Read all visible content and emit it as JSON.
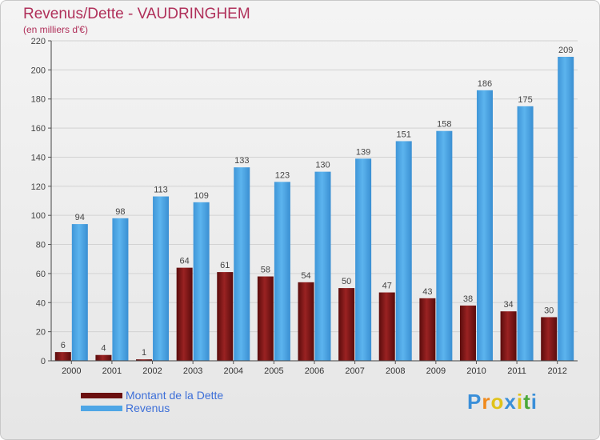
{
  "header": {
    "title": "Revenus/Dette - VAUDRINGHEM",
    "subtitle": "(en milliers d'€)"
  },
  "chart_data": {
    "type": "bar",
    "title": "Revenus/Dette - VAUDRINGHEM",
    "ylabel": "(en milliers d'€)",
    "categories": [
      "2000",
      "2001",
      "2002",
      "2003",
      "2004",
      "2005",
      "2006",
      "2007",
      "2008",
      "2009",
      "2010",
      "2011",
      "2012"
    ],
    "series": [
      {
        "name": "Montant de la Dette",
        "color": "#7a1414",
        "values": [
          6,
          4,
          1,
          64,
          61,
          58,
          54,
          50,
          47,
          43,
          38,
          34,
          30
        ]
      },
      {
        "name": "Revenus",
        "color": "#4ea6e6",
        "values": [
          94,
          98,
          113,
          109,
          133,
          123,
          130,
          139,
          151,
          158,
          186,
          175,
          209
        ]
      }
    ],
    "ylim": [
      0,
      220
    ],
    "yticks": [
      0,
      20,
      40,
      60,
      80,
      100,
      120,
      140,
      160,
      180,
      200,
      220
    ],
    "grid": true,
    "legend_position": "bottom-left"
  },
  "legend": {
    "items": [
      {
        "label": "Montant de la Dette",
        "color": "#6b0f0f"
      },
      {
        "label": "Revenus",
        "color": "#4ea6e6"
      }
    ]
  },
  "logo": {
    "letters": [
      "P",
      "r",
      "o",
      "x",
      "i",
      "t",
      "i"
    ],
    "colors": [
      "#3a8fd9",
      "#f08a1c",
      "#e0c21a",
      "#3a8fd9",
      "#e0c21a",
      "#4aa83a",
      "#3a8fd9"
    ]
  }
}
